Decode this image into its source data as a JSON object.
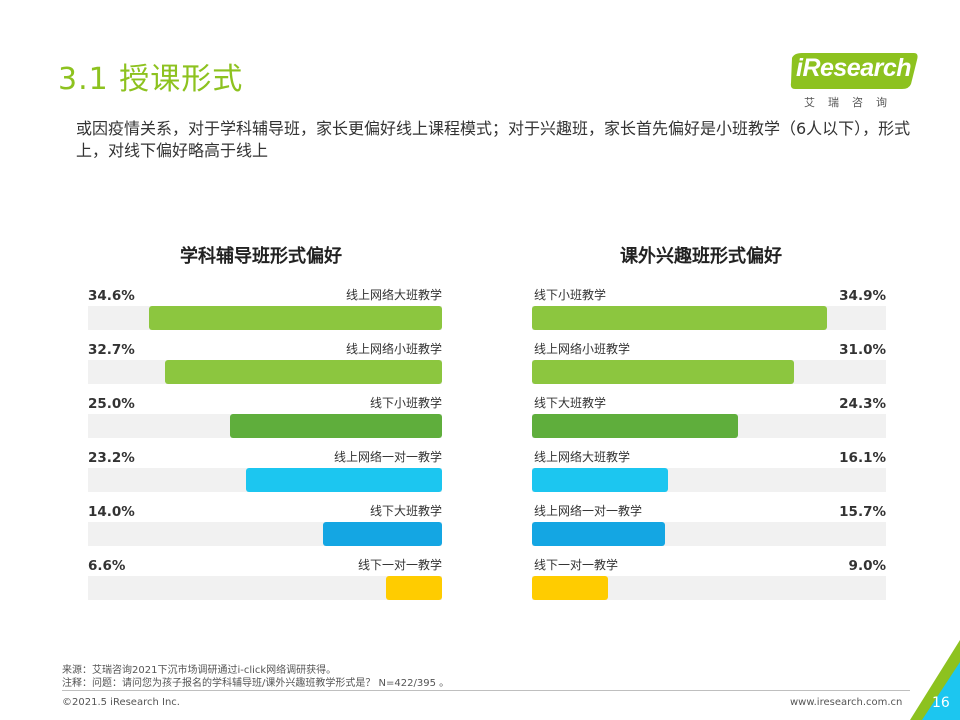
{
  "title": "3.1 授课形式",
  "logo": {
    "word": "iResearch",
    "sub": "艾瑞咨询"
  },
  "summary": "或因疫情关系，对于学科辅导班，家长更偏好线上课程模式；对于兴趣班，家长首先偏好是小班教学（6人以下），形式上，对线下偏好略高于线上",
  "colors": {
    "accent": "#8dc21f",
    "light_green": "#8cc63f",
    "dark_green": "#5fae3c",
    "cyan": "#1cc6f0",
    "blue": "#14a6e3",
    "yellow": "#ffcc00",
    "track": "#f1f1f1"
  },
  "chart_data": [
    {
      "type": "bar",
      "orientation": "horizontal",
      "direction": "right-to-left",
      "title": "学科辅导班形式偏好",
      "categories": [
        "线上网络大班教学",
        "线上网络小班教学",
        "线下小班教学",
        "线上网络一对一教学",
        "线下大班教学",
        "线下一对一教学"
      ],
      "values": [
        34.6,
        32.7,
        25.0,
        23.2,
        14.0,
        6.6
      ],
      "labels": [
        "34.6%",
        "32.7%",
        "25.0%",
        "23.2%",
        "14.0%",
        "6.6%"
      ],
      "bar_colors": [
        "#8cc63f",
        "#8cc63f",
        "#5fae3c",
        "#1cc6f0",
        "#14a6e3",
        "#ffcc00"
      ],
      "xlim": [
        0,
        40
      ],
      "unit": "%"
    },
    {
      "type": "bar",
      "orientation": "horizontal",
      "direction": "left-to-right",
      "title": "课外兴趣班形式偏好",
      "categories": [
        "线下小班教学",
        "线上网络小班教学",
        "线下大班教学",
        "线上网络大班教学",
        "线上网络一对一教学",
        "线下一对一教学"
      ],
      "values": [
        34.9,
        31.0,
        24.3,
        16.1,
        15.7,
        9.0
      ],
      "labels": [
        "34.9%",
        "31.0%",
        "24.3%",
        "16.1%",
        "15.7%",
        "9.0%"
      ],
      "bar_colors": [
        "#8cc63f",
        "#8cc63f",
        "#5fae3c",
        "#1cc6f0",
        "#14a6e3",
        "#ffcc00"
      ],
      "xlim": [
        0,
        40
      ],
      "unit": "%"
    }
  ],
  "footer": {
    "source": "来源：艾瑞咨询2021下沉市场调研通过i-click网络调研获得。",
    "note": "注释：问题：请问您为孩子报名的学科辅导班/课外兴趣班教学形式是？ N=422/395 。",
    "copyright": "©2021.5 iResearch Inc.",
    "website": "www.iresearch.com.cn",
    "page": "16"
  }
}
